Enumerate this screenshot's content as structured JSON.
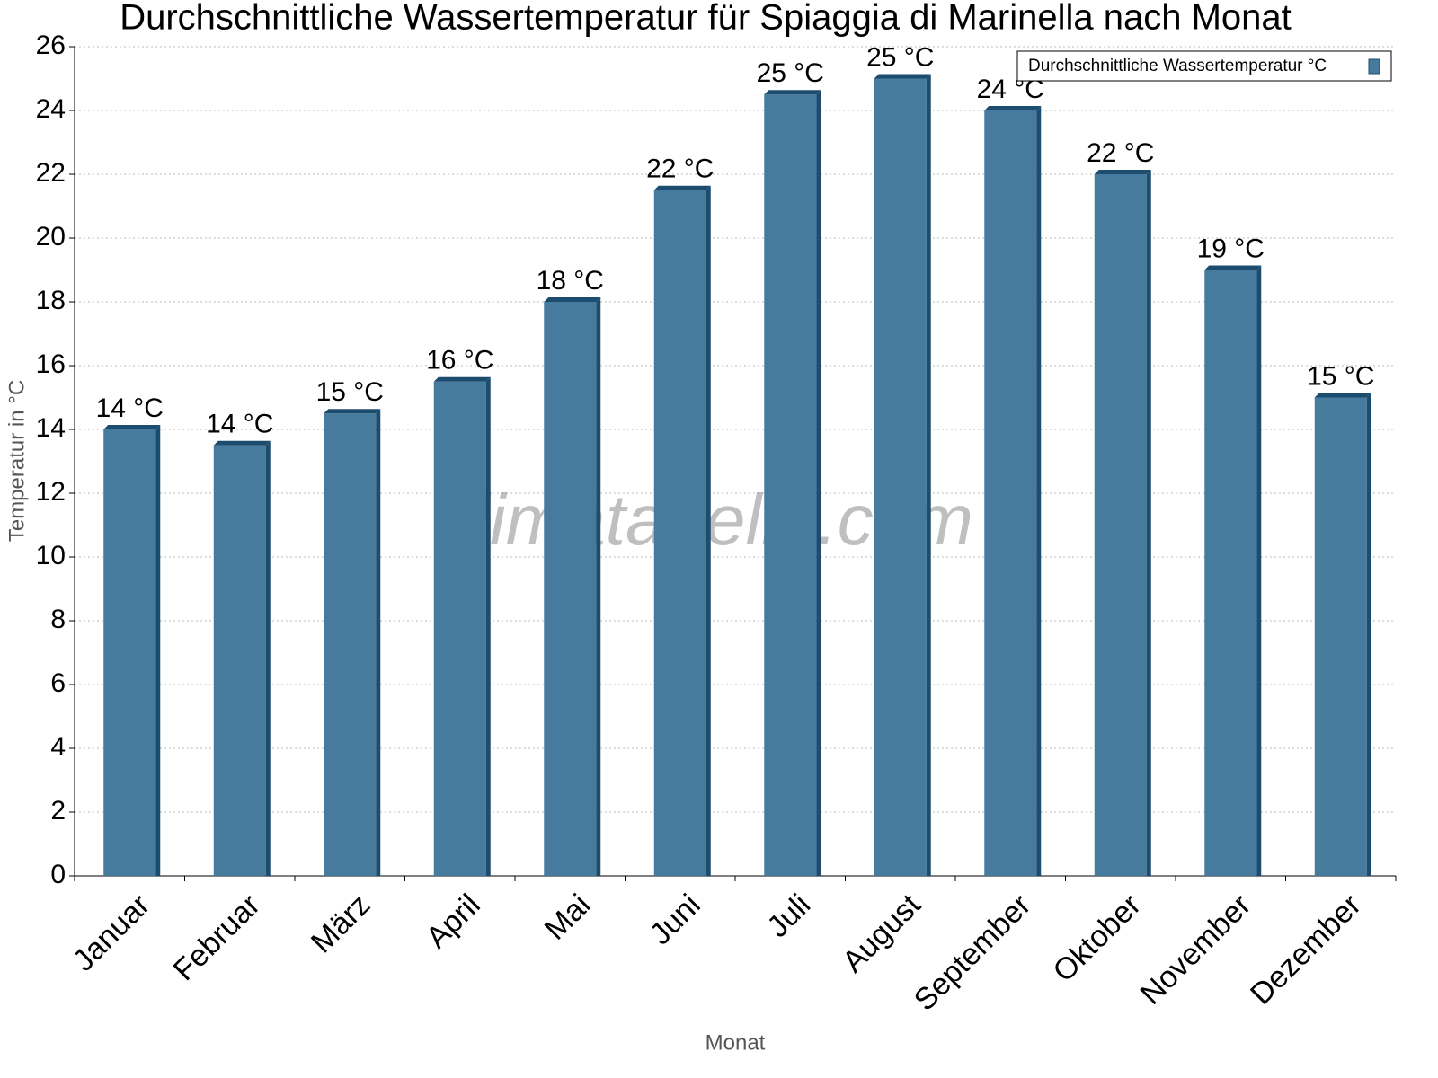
{
  "chart_data": {
    "type": "bar",
    "title": "Durchschnittliche Wassertemperatur für Spiaggia di Marinella nach Monat",
    "x_label": "Monat",
    "y_label": "Temperatur in °C",
    "watermark": "klimatabelle.com",
    "categories": [
      "Januar",
      "Februar",
      "März",
      "April",
      "Mai",
      "Juni",
      "Juli",
      "August",
      "September",
      "Oktober",
      "November",
      "Dezember"
    ],
    "series": [
      {
        "name": "Durchschnittliche Wassertemperatur °C",
        "color": "#467b9e",
        "side_color": "#1d4d6e",
        "values": [
          14,
          13.5,
          14.5,
          15.5,
          18,
          21.5,
          24.5,
          25,
          24,
          22,
          19,
          15
        ],
        "value_labels": [
          "14 °C",
          "14 °C",
          "15 °C",
          "16 °C",
          "18 °C",
          "22 °C",
          "25 °C",
          "25 °C",
          "24 °C",
          "22 °C",
          "19 °C",
          "15 °C"
        ]
      }
    ],
    "ylim": [
      0,
      26
    ],
    "yticks": [
      0,
      2,
      4,
      6,
      8,
      10,
      12,
      14,
      16,
      18,
      20,
      22,
      24,
      26
    ],
    "grid": true,
    "legend": "top-right"
  }
}
